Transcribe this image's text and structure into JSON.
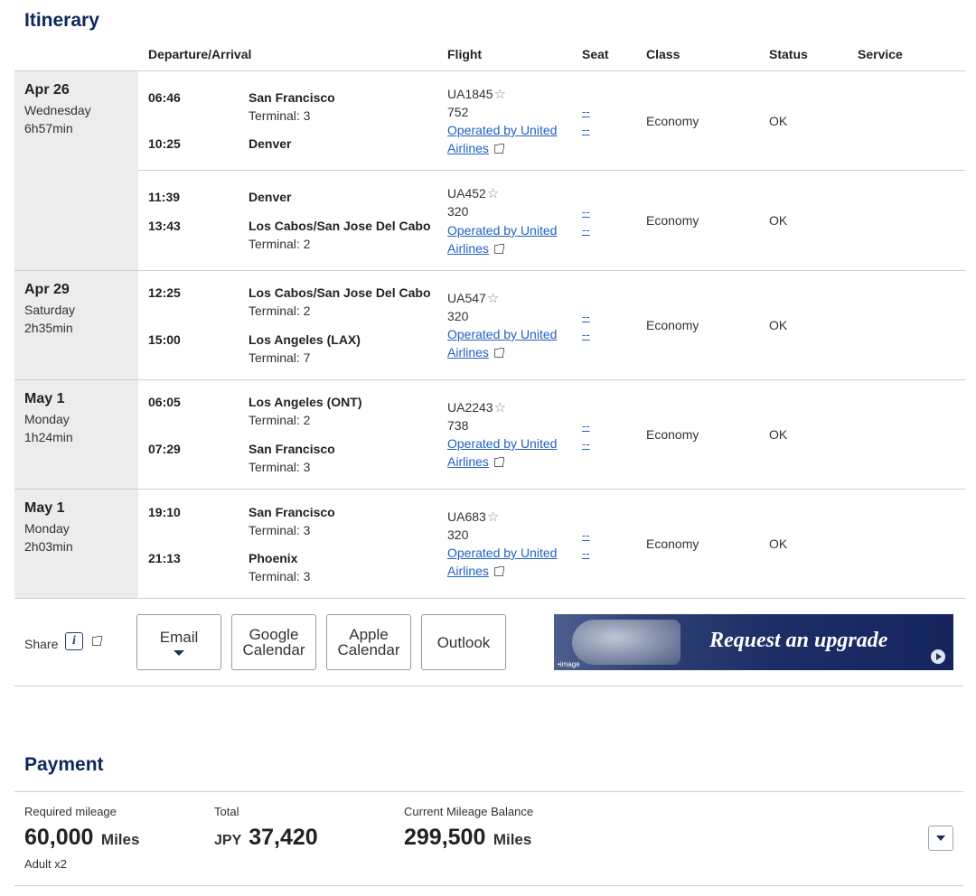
{
  "itinerary": {
    "title": "Itinerary",
    "headers": {
      "dep_arr": "Departure/Arrival",
      "flight": "Flight",
      "seat": "Seat",
      "class": "Class",
      "status": "Status",
      "service": "Service"
    },
    "days": [
      {
        "date": "Apr 26",
        "weekday": "Wednesday",
        "duration": "6h57min"
      },
      {
        "date": "Apr 29",
        "weekday": "Saturday",
        "duration": "2h35min"
      },
      {
        "date": "May 1",
        "weekday": "Monday",
        "duration": "1h24min"
      },
      {
        "date": "May 1",
        "weekday": "Monday",
        "duration": "2h03min"
      }
    ],
    "segments": [
      {
        "dep_time": "06:46",
        "dep_city": "San Francisco",
        "dep_terminal": "Terminal: 3",
        "arr_time": "10:25",
        "arr_city": "Denver",
        "arr_terminal": "",
        "flight_no": "UA1845",
        "aircraft": "752",
        "operated_by": "Operated by United Airlines",
        "seat1": "--",
        "seat2": "--",
        "class": "Economy",
        "status": "OK"
      },
      {
        "dep_time": "11:39",
        "dep_city": "Denver",
        "dep_terminal": "",
        "arr_time": "13:43",
        "arr_city": "Los Cabos/San Jose Del Cabo",
        "arr_terminal": "Terminal: 2",
        "flight_no": "UA452",
        "aircraft": "320",
        "operated_by": "Operated by United Airlines",
        "seat1": "--",
        "seat2": "--",
        "class": "Economy",
        "status": "OK"
      },
      {
        "dep_time": "12:25",
        "dep_city": "Los Cabos/San Jose Del Cabo",
        "dep_terminal": "Terminal: 2",
        "arr_time": "15:00",
        "arr_city": "Los Angeles (LAX)",
        "arr_terminal": "Terminal: 7",
        "flight_no": "UA547",
        "aircraft": "320",
        "operated_by": "Operated by United Airlines",
        "seat1": "--",
        "seat2": "--",
        "class": "Economy",
        "status": "OK"
      },
      {
        "dep_time": "06:05",
        "dep_city": "Los Angeles (ONT)",
        "dep_terminal": "Terminal: 2",
        "arr_time": "07:29",
        "arr_city": "San Francisco",
        "arr_terminal": "Terminal: 3",
        "flight_no": "UA2243",
        "aircraft": "738",
        "operated_by": "Operated by United Airlines",
        "seat1": "--",
        "seat2": "--",
        "class": "Economy",
        "status": "OK"
      },
      {
        "dep_time": "19:10",
        "dep_city": "San Francisco",
        "dep_terminal": "Terminal: 3",
        "arr_time": "21:13",
        "arr_city": "Phoenix",
        "arr_terminal": "Terminal: 3",
        "flight_no": "UA683",
        "aircraft": "320",
        "operated_by": "Operated by United Airlines",
        "seat1": "--",
        "seat2": "--",
        "class": "Economy",
        "status": "OK"
      }
    ],
    "share": {
      "label": "Share",
      "info_glyph": "i",
      "email_label": "Email",
      "google_line1": "Google",
      "google_line2": "Calendar",
      "apple_line1": "Apple",
      "apple_line2": "Calendar",
      "outlook_label": "Outlook"
    },
    "banner": {
      "text": "Request an upgrade",
      "image_note": "•image"
    }
  },
  "payment": {
    "title": "Payment",
    "required_mileage_label": "Required mileage",
    "required_mileage_value": "60,000",
    "required_mileage_unit": "Miles",
    "passengers": "Adult x2",
    "total_label": "Total",
    "total_currency": "JPY",
    "total_value": "37,420",
    "balance_label": "Current Mileage Balance",
    "balance_value": "299,500",
    "balance_unit": "Miles"
  },
  "icons": {
    "star": "star-icon",
    "external_link": "external-link-icon",
    "info": "info-icon",
    "caret_down": "chevron-down-icon"
  },
  "colors": {
    "title": "#0b2a5b",
    "link": "#1f61c2",
    "date_bg": "#ececec"
  }
}
